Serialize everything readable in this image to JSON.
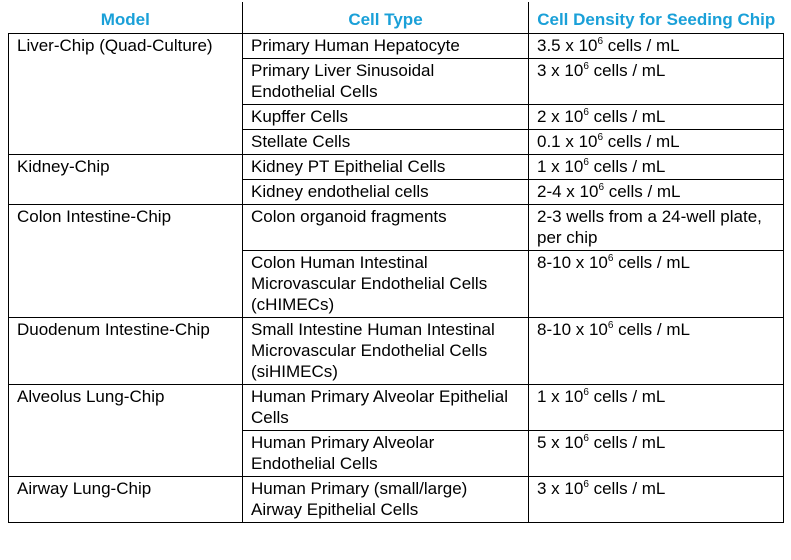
{
  "headers": [
    "Model",
    "Cell Type",
    "Cell Density for Seeding Chip"
  ],
  "models": [
    {
      "label": "Liver-Chip (Quad-Culture)",
      "rows": [
        {
          "cell_type": "Primary Human Hepatocyte",
          "density_value": "3.5 x 10",
          "density_exp": "6",
          "density_unit": " cells / mL"
        },
        {
          "cell_type": "Primary Liver Sinusoidal Endothelial Cells",
          "density_value": "3 x 10",
          "density_exp": "6",
          "density_unit": " cells / mL"
        },
        {
          "cell_type": "Kupffer Cells",
          "density_value": "2 x 10",
          "density_exp": "6",
          "density_unit": " cells / mL"
        },
        {
          "cell_type": "Stellate Cells",
          "density_value": "0.1 x 10",
          "density_exp": "6",
          "density_unit": " cells / mL"
        }
      ]
    },
    {
      "label": "Kidney-Chip",
      "rows": [
        {
          "cell_type": "Kidney PT Epithelial Cells",
          "density_value": "1 x 10",
          "density_exp": "6",
          "density_unit": " cells / mL"
        },
        {
          "cell_type": "Kidney endothelial cells",
          "density_value": "2-4 x 10",
          "density_exp": "6",
          "density_unit": " cells / mL"
        }
      ]
    },
    {
      "label": "Colon Intestine-Chip",
      "rows": [
        {
          "cell_type": "Colon organoid fragments",
          "density_value": "2-3 wells from a 24-well plate, per chip",
          "density_exp": "",
          "density_unit": ""
        },
        {
          "cell_type": "Colon Human Intestinal Microvascular Endothelial Cells (cHIMECs)",
          "density_value": "8-10 x 10",
          "density_exp": "6",
          "density_unit": " cells / mL"
        }
      ]
    },
    {
      "label": "Duodenum Intestine-Chip",
      "rows": [
        {
          "cell_type": "Small Intestine Human Intestinal Microvascular Endothelial Cells (siHIMECs)",
          "density_value": "8-10 x 10",
          "density_exp": "6",
          "density_unit": " cells / mL"
        }
      ]
    },
    {
      "label": "Alveolus Lung-Chip",
      "rows": [
        {
          "cell_type": "Human Primary Alveolar Epithelial Cells",
          "density_value": "1 x 10",
          "density_exp": "6",
          "density_unit": " cells / mL"
        },
        {
          "cell_type": "Human Primary Alveolar Endothelial Cells",
          "density_value": "5 x 10",
          "density_exp": "6",
          "density_unit": " cells / mL"
        }
      ]
    },
    {
      "label": "Airway Lung-Chip",
      "rows": [
        {
          "cell_type": "Human Primary (small/large) Airway Epithelial Cells",
          "density_value": "3 x 10",
          "density_exp": "6",
          "density_unit": " cells / mL"
        }
      ]
    }
  ]
}
